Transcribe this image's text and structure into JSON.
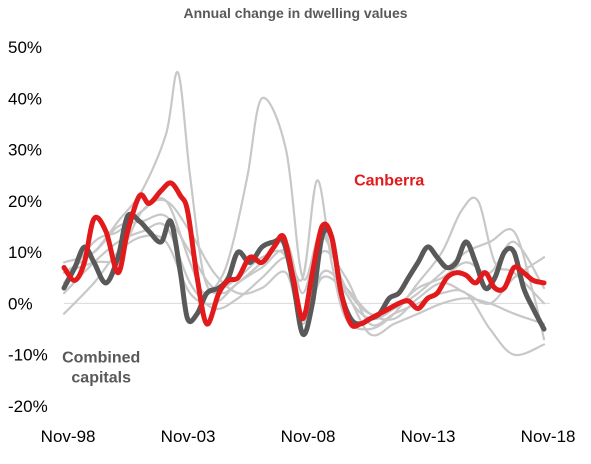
{
  "chart_data": {
    "type": "line",
    "title": "Annual change in dwelling values",
    "xlabel": "",
    "ylabel": "",
    "x_ticks": [
      "Nov-98",
      "Nov-03",
      "Nov-08",
      "Nov-13",
      "Nov-18"
    ],
    "x_tick_years": [
      1998.92,
      2003.92,
      2008.92,
      2013.92,
      2018.92
    ],
    "xlim": [
      1998.75,
      2019.0
    ],
    "y_ticks": [
      -20,
      -10,
      0,
      10,
      20,
      30,
      40,
      50
    ],
    "y_tick_labels": [
      "-20%",
      "-10%",
      "0%",
      "10%",
      "20%",
      "30%",
      "40%",
      "50%"
    ],
    "ylim": [
      -20,
      50
    ],
    "grid": false,
    "annotations": [
      {
        "text": "Canberra",
        "color": "#e31a1c",
        "x": 2012.3,
        "y": 23
      },
      {
        "text": "Combined\ncapitals",
        "color": "#595959",
        "x": 2000.3,
        "y": -11.5
      }
    ],
    "series": [
      {
        "name": "Canberra",
        "color": "#e31a1c",
        "emphasis": "primary",
        "x": [
          1998.75,
          1999.2,
          1999.6,
          2000.0,
          2000.5,
          2001.0,
          2001.4,
          2001.9,
          2002.3,
          2002.8,
          2003.2,
          2003.6,
          2003.9,
          2004.3,
          2004.7,
          2005.2,
          2005.6,
          2006.0,
          2006.5,
          2007.0,
          2007.5,
          2007.9,
          2008.3,
          2008.7,
          2009.1,
          2009.5,
          2009.9,
          2010.3,
          2010.7,
          2011.1,
          2011.5,
          2011.9,
          2012.3,
          2012.7,
          2013.1,
          2013.5,
          2013.9,
          2014.3,
          2014.7,
          2015.1,
          2015.5,
          2015.9,
          2016.3,
          2016.7,
          2017.1,
          2017.5,
          2017.9,
          2018.3,
          2018.75
        ],
        "y": [
          7,
          4.5,
          8,
          16.5,
          14,
          6,
          14,
          21,
          19.5,
          22,
          23.5,
          21,
          18,
          5,
          -4,
          2,
          4.5,
          5,
          9,
          8,
          11,
          13,
          5,
          -3,
          6,
          15,
          13,
          2,
          -4,
          -4,
          -3,
          -2,
          -1,
          0,
          0.5,
          -1,
          1,
          2,
          5,
          6,
          5.5,
          4,
          6,
          3,
          3,
          7,
          6,
          4.5,
          4
        ]
      },
      {
        "name": "Combined capitals",
        "color": "#595959",
        "emphasis": "secondary",
        "x": [
          1998.75,
          1999.2,
          1999.6,
          2000.0,
          2000.5,
          2001.0,
          2001.4,
          2001.9,
          2002.3,
          2002.8,
          2003.2,
          2003.6,
          2003.9,
          2004.3,
          2004.7,
          2005.2,
          2005.6,
          2006.0,
          2006.5,
          2007.0,
          2007.5,
          2007.9,
          2008.3,
          2008.7,
          2009.1,
          2009.5,
          2009.9,
          2010.3,
          2010.7,
          2011.1,
          2011.5,
          2011.9,
          2012.3,
          2012.7,
          2013.1,
          2013.5,
          2013.9,
          2014.3,
          2014.7,
          2015.1,
          2015.5,
          2015.9,
          2016.3,
          2016.7,
          2017.1,
          2017.5,
          2017.9,
          2018.3,
          2018.75
        ],
        "y": [
          3,
          7,
          11,
          8,
          4,
          9,
          17,
          16,
          14,
          12,
          16,
          6,
          -3,
          -2,
          2,
          3,
          5,
          10,
          8,
          11,
          12,
          12,
          4,
          -6,
          0,
          13,
          13,
          2,
          -3,
          -4,
          -3,
          -2,
          1,
          2,
          5,
          8,
          11,
          9,
          7,
          8,
          12,
          8,
          3,
          5,
          10,
          10,
          3,
          -1,
          -5
        ]
      },
      {
        "name": "",
        "color": "#c8c8c8",
        "emphasis": "background",
        "x": [
          1998.75,
          2000.0,
          2001.0,
          2002.0,
          2003.0,
          2003.5,
          2004.0,
          2004.6,
          2005.3,
          2006.0,
          2007.0,
          2008.0,
          2008.7,
          2009.5,
          2010.5,
          2011.5,
          2012.5,
          2013.5,
          2014.5,
          2015.5,
          2016.5,
          2017.5,
          2018.3,
          2018.75
        ],
        "y": [
          6,
          10,
          16,
          22,
          33,
          45,
          25,
          5,
          2,
          4,
          8,
          12,
          2,
          13,
          3,
          -2,
          -1,
          2,
          6,
          10,
          12,
          14,
          2,
          -7
        ]
      },
      {
        "name": "",
        "color": "#c8c8c8",
        "emphasis": "background",
        "x": [
          1998.75,
          2000.0,
          2001.0,
          2002.0,
          2003.0,
          2004.0,
          2004.6,
          2005.3,
          2005.8,
          2006.4,
          2007.0,
          2008.0,
          2008.7,
          2009.5,
          2010.5,
          2011.5,
          2012.5,
          2013.5,
          2014.5,
          2015.5,
          2016.5,
          2017.5,
          2018.75
        ],
        "y": [
          4,
          12,
          14,
          18,
          20,
          8,
          2,
          5,
          12,
          25,
          40,
          30,
          5,
          14,
          2,
          -3,
          -1,
          3,
          5,
          8,
          6,
          12,
          3
        ]
      },
      {
        "name": "",
        "color": "#c8c8c8",
        "emphasis": "background",
        "x": [
          1998.75,
          2000.0,
          2001.0,
          2002.0,
          2003.0,
          2004.0,
          2005.0,
          2006.0,
          2007.0,
          2008.0,
          2008.7,
          2009.3,
          2009.9,
          2010.5,
          2011.5,
          2012.5,
          2013.5,
          2014.5,
          2015.3,
          2016.0,
          2016.7,
          2017.5,
          2018.75
        ],
        "y": [
          2,
          8,
          12,
          14,
          15,
          4,
          -1,
          1,
          5,
          9,
          5,
          24,
          8,
          -3,
          -5,
          -2,
          4,
          10,
          18,
          20,
          8,
          6,
          0
        ]
      },
      {
        "name": "",
        "color": "#c8c8c8",
        "emphasis": "background",
        "x": [
          1998.75,
          2000.0,
          2001.0,
          2002.0,
          2003.0,
          2004.0,
          2005.0,
          2006.0,
          2007.0,
          2008.0,
          2008.7,
          2009.5,
          2010.5,
          2011.5,
          2012.5,
          2013.5,
          2014.5,
          2015.5,
          2016.5,
          2017.5,
          2018.75
        ],
        "y": [
          -2,
          4,
          10,
          13,
          12,
          2,
          0,
          4,
          7,
          10,
          -2,
          10,
          5,
          -4,
          -2,
          0,
          2,
          2,
          -5,
          -10,
          -8
        ]
      },
      {
        "name": "",
        "color": "#c8c8c8",
        "emphasis": "background",
        "x": [
          1998.75,
          2000.0,
          2001.0,
          2002.0,
          2003.0,
          2004.0,
          2005.0,
          2006.0,
          2007.0,
          2008.0,
          2008.7,
          2009.5,
          2010.5,
          2011.5,
          2012.5,
          2013.5,
          2014.5,
          2015.5,
          2016.5,
          2017.5,
          2018.75
        ],
        "y": [
          6,
          8,
          9,
          18,
          20,
          14,
          6,
          2,
          3,
          6,
          -4,
          5,
          2,
          -6,
          -4,
          -2,
          0,
          1,
          0,
          -2,
          -4
        ]
      },
      {
        "name": "",
        "color": "#c8c8c8",
        "emphasis": "background",
        "x": [
          1998.75,
          2000.0,
          2001.0,
          2002.0,
          2003.0,
          2004.0,
          2005.0,
          2006.0,
          2007.0,
          2008.0,
          2008.7,
          2009.5,
          2010.5,
          2011.5,
          2012.5,
          2013.5,
          2014.5,
          2015.5,
          2016.5,
          2017.5,
          2018.75
        ],
        "y": [
          8,
          10,
          15,
          16,
          17,
          10,
          3,
          5,
          9,
          9,
          -6,
          6,
          3,
          -2,
          -3,
          1,
          4,
          2,
          0,
          5,
          9
        ]
      }
    ]
  }
}
